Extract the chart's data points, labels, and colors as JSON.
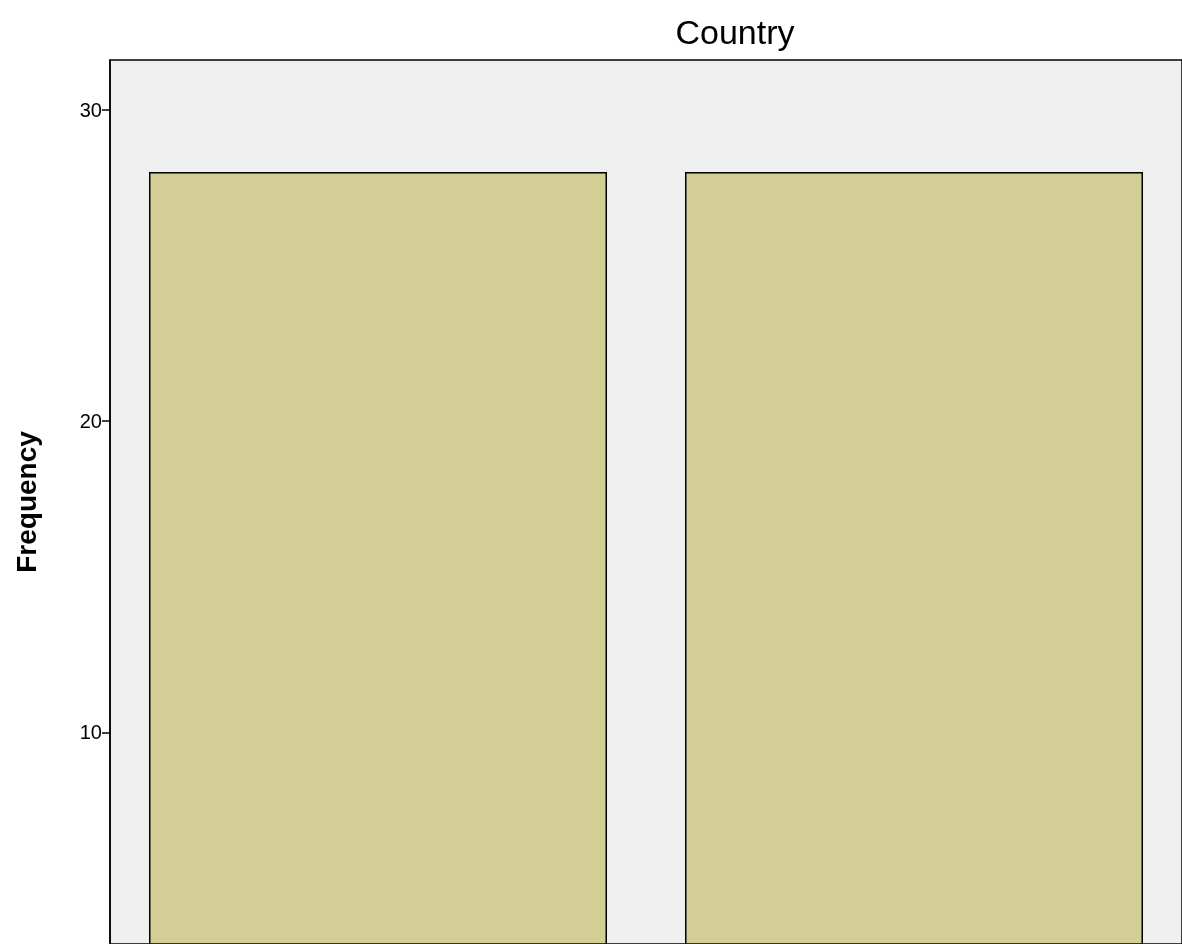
{
  "chart_data": {
    "type": "bar",
    "title": "Country",
    "ylabel": "Frequency",
    "categories": [
      null,
      null
    ],
    "values": [
      28,
      28
    ],
    "color": "#d3cd96",
    "ylim": [
      3.2,
      31.6
    ],
    "yticks": [
      10,
      20,
      30
    ],
    "tick_labels": "y"
  }
}
